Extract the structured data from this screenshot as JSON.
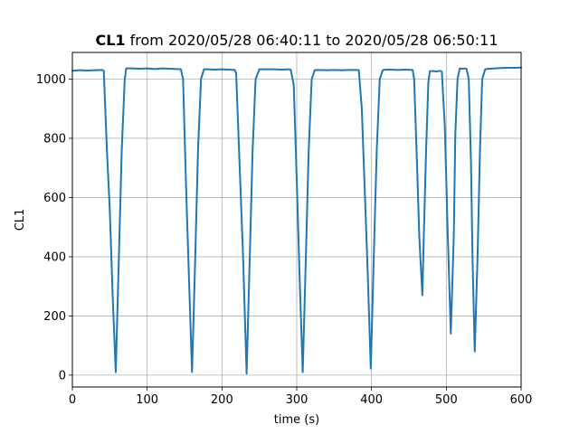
{
  "chart_data": {
    "type": "line",
    "title": {
      "bold": "CL1",
      "rest": " from 2020/05/28 06:40:11 to 2020/05/28 06:50:11"
    },
    "xlabel": "time (s)",
    "ylabel": "CL1",
    "xlim": [
      0,
      600
    ],
    "ylim": [
      -40,
      1090
    ],
    "xticks": [
      0,
      100,
      200,
      300,
      400,
      500,
      600
    ],
    "yticks": [
      0,
      200,
      400,
      600,
      800,
      1000
    ],
    "grid": true,
    "series": [
      {
        "color": "#1f77b4",
        "x": [
          0,
          10,
          20,
          30,
          40,
          42,
          46,
          50,
          54,
          58,
          62,
          66,
          70,
          72,
          80,
          90,
          100,
          110,
          120,
          130,
          140,
          145,
          148,
          152,
          156,
          160,
          164,
          168,
          172,
          176,
          180,
          190,
          200,
          210,
          217,
          219,
          223,
          228,
          233,
          237,
          241,
          245,
          250,
          255,
          260,
          270,
          280,
          290,
          292,
          296,
          300,
          304,
          308,
          312,
          316,
          320,
          324,
          328,
          340,
          350,
          360,
          370,
          380,
          383,
          387,
          391,
          395,
          399,
          403,
          407,
          411,
          415,
          418,
          425,
          435,
          445,
          455,
          457,
          461,
          464,
          468,
          470,
          473,
          476,
          478,
          482,
          487,
          492,
          494,
          498,
          502,
          506,
          510,
          512,
          515,
          518,
          521,
          524,
          527,
          530,
          533,
          535,
          538,
          542,
          545,
          548,
          552,
          556,
          560,
          563,
          566,
          570,
          580,
          590,
          600
        ],
        "y": [
          1028,
          1030,
          1029,
          1030,
          1031,
          1028,
          770,
          560,
          260,
          10,
          380,
          760,
          1000,
          1036,
          1036,
          1035,
          1036,
          1034,
          1036,
          1035,
          1034,
          1033,
          1000,
          640,
          320,
          10,
          370,
          760,
          1000,
          1033,
          1033,
          1032,
          1033,
          1032,
          1031,
          1020,
          750,
          420,
          5,
          380,
          760,
          1000,
          1033,
          1033,
          1033,
          1033,
          1032,
          1033,
          1031,
          980,
          660,
          320,
          10,
          380,
          760,
          1000,
          1030,
          1031,
          1030,
          1031,
          1030,
          1031,
          1031,
          1030,
          900,
          620,
          340,
          22,
          400,
          760,
          1000,
          1030,
          1032,
          1032,
          1031,
          1032,
          1031,
          1000,
          700,
          460,
          270,
          480,
          760,
          990,
          1027,
          1027,
          1026,
          1028,
          1025,
          840,
          470,
          140,
          470,
          810,
          1000,
          1036,
          1035,
          1036,
          1035,
          1000,
          720,
          400,
          80,
          420,
          760,
          1000,
          1033,
          1035,
          1035,
          1036,
          1036,
          1037,
          1038,
          1038,
          1039
        ]
      }
    ]
  }
}
